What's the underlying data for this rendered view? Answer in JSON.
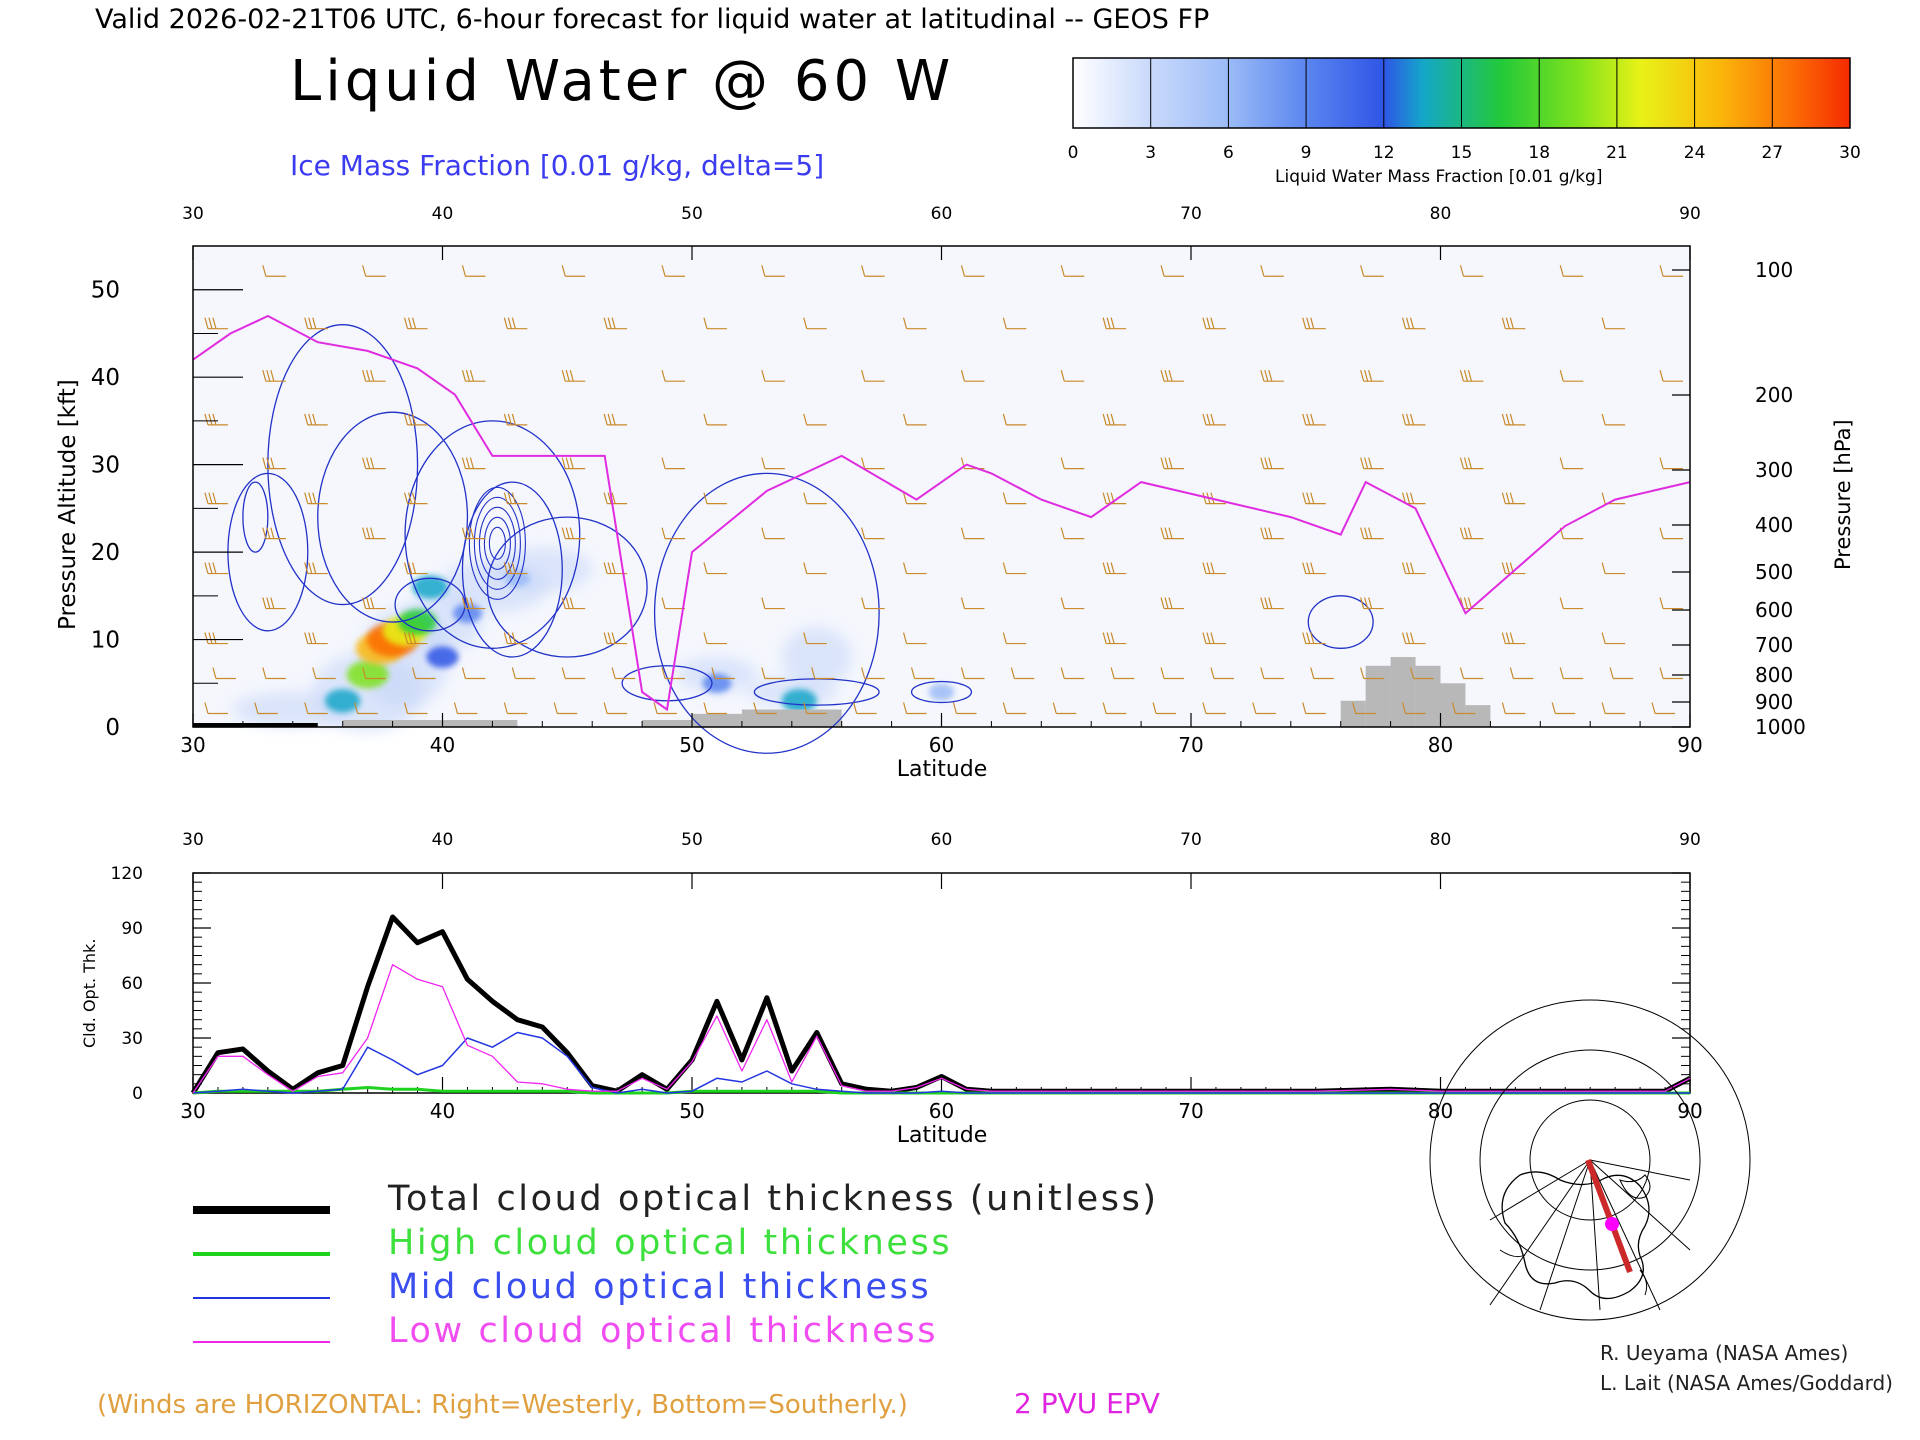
{
  "header": {
    "valid_line": "Valid 2026-02-21T06 UTC, 6-hour forecast for liquid water at latitudinal -- GEOS FP",
    "main_title": "Liquid Water @ 60 W",
    "ice_label": "Ice Mass Fraction [0.01 g/kg, delta=5]"
  },
  "colorbar": {
    "ticks": [
      "0",
      "3",
      "6",
      "9",
      "12",
      "15",
      "18",
      "21",
      "24",
      "27",
      "30"
    ],
    "label": "Liquid Water Mass Fraction [0.01 g/kg]",
    "colors": [
      "#f4f7fe",
      "#c9d9fb",
      "#9bbbf7",
      "#5b86ef",
      "#2f55e6",
      "#14a6c9",
      "#22c93a",
      "#7fe21c",
      "#e8f218",
      "#fbb80a",
      "#fb6a05"
    ]
  },
  "top_panel": {
    "x_ticks": [
      "30",
      "40",
      "50",
      "60",
      "70",
      "80",
      "90"
    ],
    "y_left_ticks": [
      "0",
      "10",
      "20",
      "30",
      "40",
      "50"
    ],
    "y_left_label": "Pressure Altitude [kft]",
    "y_right_ticks": [
      "100",
      "200",
      "300",
      "400",
      "500",
      "600",
      "700",
      "800",
      "900",
      "1000"
    ],
    "y_right_label": "Pressure [hPa]",
    "x_label": "Latitude"
  },
  "bottom_panel": {
    "x_ticks": [
      "30",
      "40",
      "50",
      "60",
      "70",
      "80",
      "90"
    ],
    "y_ticks": [
      "0",
      "30",
      "60",
      "90",
      "120"
    ],
    "y_label": "Cld. Opt. Thk.",
    "x_label": "Latitude"
  },
  "legend": {
    "total": "Total cloud optical thickness (unitless)",
    "high": "High cloud optical thickness",
    "mid": "Mid cloud optical thickness",
    "low": "Low cloud optical thickness",
    "colors": {
      "total": "#000000",
      "high": "#1ed21e",
      "mid": "#2235e0",
      "low": "#f025f0"
    }
  },
  "credits": {
    "line1": "R. Ueyama (NASA Ames)",
    "line2": "L. Lait (NASA Ames/Goddard)"
  },
  "footer": {
    "winds_note": "(Winds are HORIZONTAL: Right=Westerly, Bottom=Southerly.)",
    "epv_label": "2 PVU EPV"
  },
  "chart_data": [
    {
      "type": "line",
      "name": "cloud optical thickness vs latitude",
      "x": [
        30,
        31,
        32,
        33,
        34,
        35,
        36,
        37,
        38,
        39,
        40,
        41,
        42,
        43,
        44,
        45,
        46,
        47,
        48,
        49,
        50,
        51,
        52,
        53,
        54,
        55,
        56,
        57,
        58,
        59,
        60,
        61,
        62,
        65,
        70,
        75,
        78,
        80,
        85,
        89,
        90
      ],
      "xlim": [
        30,
        90
      ],
      "ylim": [
        0,
        120
      ],
      "xlabel": "Latitude",
      "ylabel": "Cld. Opt. Thk.",
      "series": [
        {
          "name": "Total cloud optical thickness (unitless)",
          "values": [
            0,
            22,
            24,
            12,
            2,
            11,
            15,
            58,
            96,
            82,
            88,
            62,
            50,
            40,
            36,
            22,
            4,
            1,
            10,
            2,
            18,
            50,
            18,
            52,
            12,
            33,
            5,
            2,
            1,
            3,
            9,
            2,
            1,
            1,
            1,
            1,
            2,
            1,
            1,
            1,
            8
          ]
        },
        {
          "name": "High cloud optical thickness",
          "values": [
            0,
            1,
            1,
            1,
            1,
            1,
            2,
            3,
            2,
            2,
            1,
            1,
            1,
            1,
            1,
            1,
            0,
            0,
            0,
            0,
            1,
            1,
            1,
            1,
            1,
            1,
            0,
            0,
            0,
            0,
            0,
            0,
            0,
            0,
            0,
            0,
            0,
            0,
            0,
            0,
            0
          ]
        },
        {
          "name": "Mid cloud optical thickness",
          "values": [
            0,
            1,
            2,
            1,
            0,
            1,
            2,
            25,
            18,
            10,
            15,
            30,
            25,
            33,
            30,
            20,
            3,
            0,
            2,
            0,
            1,
            8,
            6,
            12,
            5,
            2,
            1,
            0,
            0,
            0,
            1,
            0,
            0,
            0,
            0,
            0,
            0,
            0,
            0,
            0,
            0
          ]
        },
        {
          "name": "Low cloud optical thickness",
          "values": [
            0,
            20,
            20,
            10,
            1,
            9,
            11,
            30,
            70,
            62,
            58,
            26,
            20,
            6,
            5,
            2,
            1,
            1,
            8,
            2,
            17,
            42,
            12,
            40,
            6,
            31,
            4,
            1,
            1,
            3,
            8,
            2,
            1,
            1,
            1,
            1,
            2,
            1,
            1,
            1,
            8
          ]
        }
      ]
    },
    {
      "type": "heatmap",
      "name": "liquid water mass fraction cross-section",
      "xlim": [
        30,
        90
      ],
      "ylim": [
        0,
        55
      ],
      "xlabel": "Latitude",
      "ylabel": "Pressure Altitude [kft]",
      "cells": [
        {
          "lat": 36.0,
          "alt": 3,
          "value": 15
        },
        {
          "lat": 37.0,
          "alt": 6,
          "value": 21
        },
        {
          "lat": 37.5,
          "alt": 9,
          "value": 27
        },
        {
          "lat": 38.0,
          "alt": 10,
          "value": 30
        },
        {
          "lat": 38.5,
          "alt": 11,
          "value": 24
        },
        {
          "lat": 39.0,
          "alt": 12,
          "value": 18
        },
        {
          "lat": 39.5,
          "alt": 16,
          "value": 15
        },
        {
          "lat": 40.0,
          "alt": 8,
          "value": 12
        },
        {
          "lat": 41.0,
          "alt": 13,
          "value": 9
        },
        {
          "lat": 43.0,
          "alt": 17,
          "value": 6
        },
        {
          "lat": 51.0,
          "alt": 5,
          "value": 9
        },
        {
          "lat": 54.3,
          "alt": 3,
          "value": 15
        },
        {
          "lat": 60.0,
          "alt": 4,
          "value": 6
        }
      ],
      "epv_2pvu_kft": [
        [
          30,
          42
        ],
        [
          31.5,
          45
        ],
        [
          33,
          47
        ],
        [
          35,
          44
        ],
        [
          37,
          43
        ],
        [
          39,
          41
        ],
        [
          40.5,
          38
        ],
        [
          42,
          31
        ],
        [
          46.5,
          31
        ],
        [
          48,
          4
        ],
        [
          49,
          2
        ],
        [
          50,
          20
        ],
        [
          53,
          27
        ],
        [
          56,
          31
        ],
        [
          59,
          26
        ],
        [
          61,
          30
        ],
        [
          62,
          29
        ],
        [
          64,
          26
        ],
        [
          66,
          24
        ],
        [
          68,
          28
        ],
        [
          71,
          26
        ],
        [
          74,
          24
        ],
        [
          76,
          22
        ],
        [
          77,
          28
        ],
        [
          79,
          25
        ],
        [
          81,
          13
        ],
        [
          83,
          18
        ],
        [
          85,
          23
        ],
        [
          87,
          26
        ],
        [
          90,
          28
        ]
      ]
    }
  ]
}
